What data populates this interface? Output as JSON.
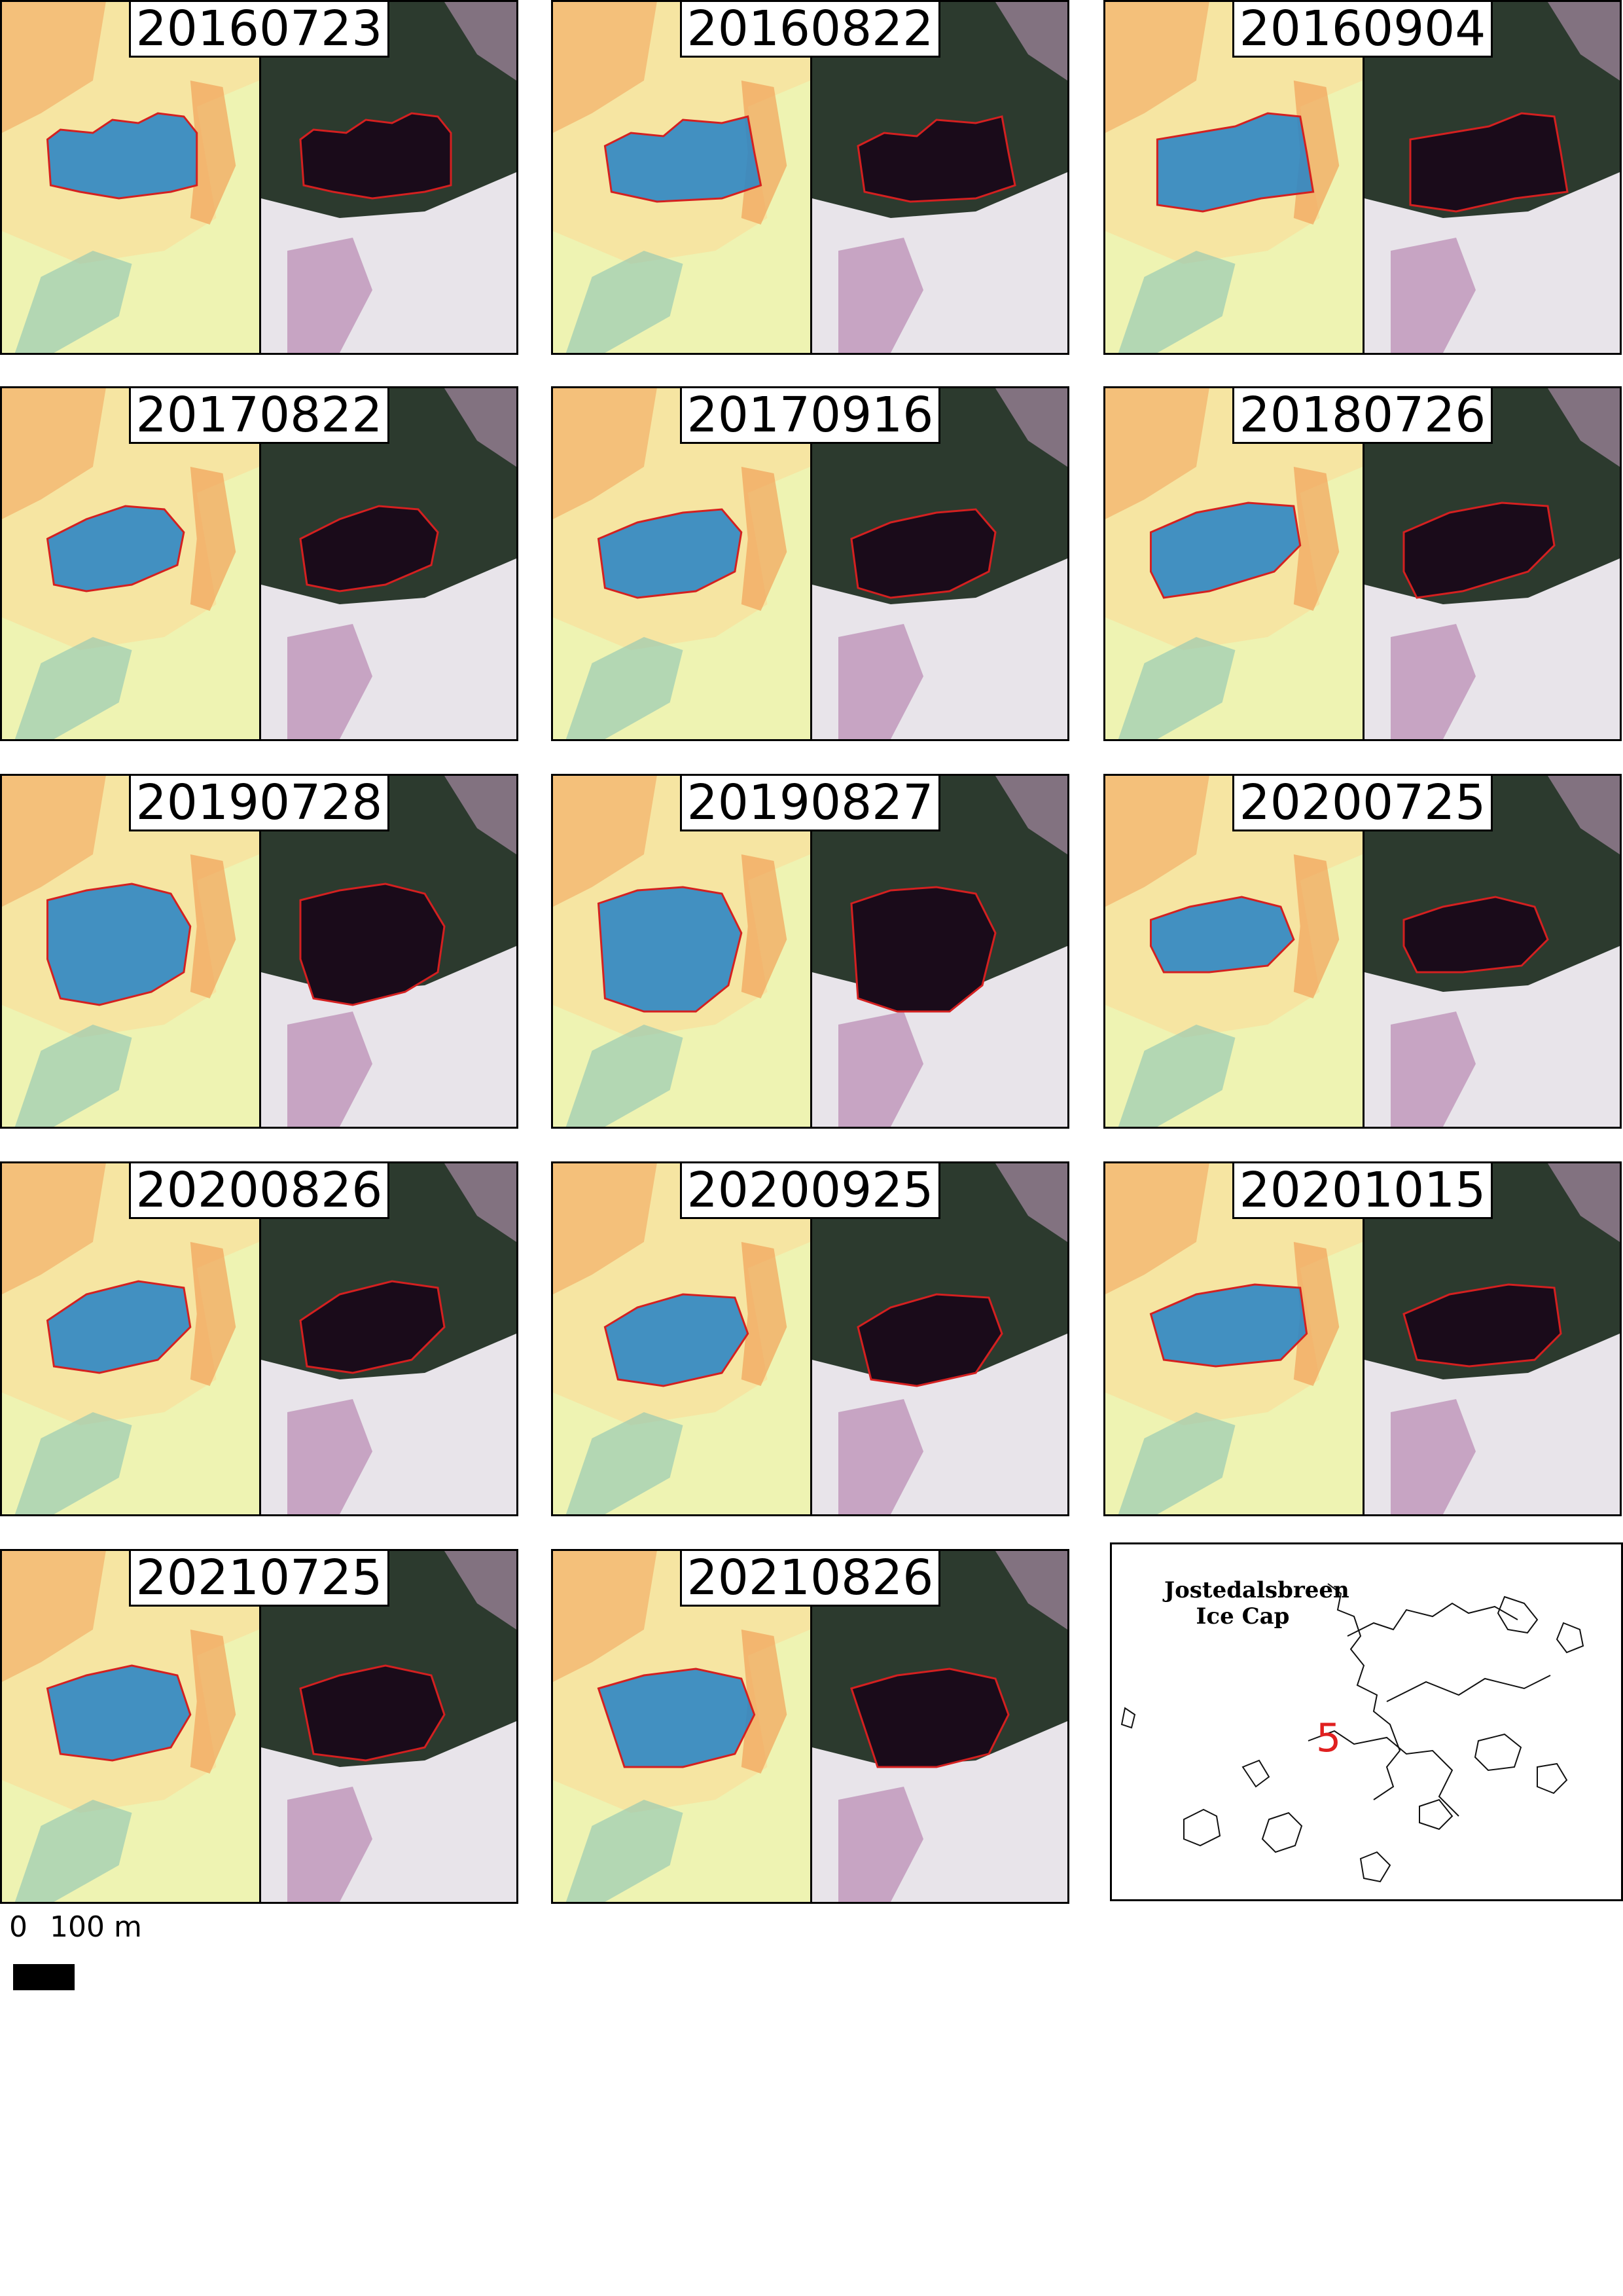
{
  "panels": [
    {
      "date": "20160723"
    },
    {
      "date": "20160822"
    },
    {
      "date": "20160904"
    },
    {
      "date": "20170822"
    },
    {
      "date": "20170916"
    },
    {
      "date": "20180726"
    },
    {
      "date": "20190728"
    },
    {
      "date": "20190827"
    },
    {
      "date": "20200725"
    },
    {
      "date": "20200826"
    },
    {
      "date": "20200925"
    },
    {
      "date": "20201015"
    },
    {
      "date": "20210725"
    },
    {
      "date": "20210826"
    }
  ],
  "locator": {
    "title_line1": "Jostedalsbreen",
    "title_line2": "Ice Cap",
    "marker": "5",
    "marker_color": "#e02020"
  },
  "scale_bar": {
    "zero_label": "0",
    "distance_label": "100 m"
  },
  "colors": {
    "outline": "#d42020",
    "water_blue": "#2f86c4",
    "ndwi_background": "#eef3b2",
    "ndwi_orange": "#f2a35a",
    "rgb_dark": "#1a0b1a"
  }
}
